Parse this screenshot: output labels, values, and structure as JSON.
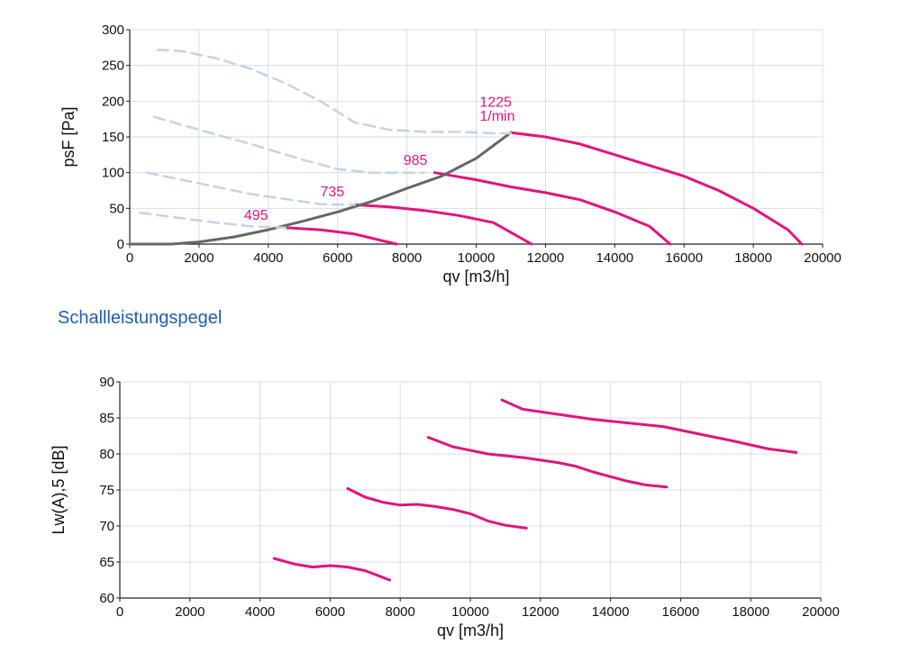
{
  "section_heading": "Schallleistungspegel",
  "colors": {
    "curve": "#e0157d",
    "system_line": "#666666",
    "dashed": "#c5d3e3",
    "grid": "#d7dde6",
    "heading": "#1f5fb0"
  },
  "chart_data": [
    {
      "type": "line",
      "title": "",
      "xlabel": "qv [m3/h]",
      "ylabel": "psF [Pa]",
      "xlim": [
        0,
        20000
      ],
      "ylim": [
        0,
        300
      ],
      "xticks": [
        "0",
        "2000",
        "4000",
        "6000",
        "8000",
        "10000",
        "12000",
        "14000",
        "16000",
        "18000",
        "20000"
      ],
      "yticks": [
        "0",
        "50",
        "100",
        "150",
        "200",
        "250",
        "300"
      ],
      "grid": true,
      "series": [
        {
          "name": "495",
          "style": "solid",
          "points": [
            [
              4500,
              23
            ],
            [
              5500,
              20
            ],
            [
              6500,
              14
            ],
            [
              7700,
              0
            ]
          ]
        },
        {
          "name": "735",
          "style": "solid",
          "points": [
            [
              6500,
              55
            ],
            [
              7500,
              52
            ],
            [
              8500,
              47
            ],
            [
              9500,
              40
            ],
            [
              10500,
              30
            ],
            [
              11600,
              0
            ]
          ]
        },
        {
          "name": "985",
          "style": "solid",
          "points": [
            [
              8800,
              100
            ],
            [
              10000,
              90
            ],
            [
              11000,
              80
            ],
            [
              12000,
              72
            ],
            [
              13000,
              62
            ],
            [
              14000,
              45
            ],
            [
              15000,
              25
            ],
            [
              15600,
              0
            ]
          ]
        },
        {
          "name": "1225",
          "style": "solid",
          "points": [
            [
              11000,
              156
            ],
            [
              12000,
              150
            ],
            [
              13000,
              140
            ],
            [
              14000,
              125
            ],
            [
              15000,
              110
            ],
            [
              16000,
              95
            ],
            [
              17000,
              75
            ],
            [
              18000,
              50
            ],
            [
              19000,
              20
            ],
            [
              19400,
              0
            ]
          ]
        },
        {
          "style": "system",
          "points": [
            [
              0,
              0
            ],
            [
              1200,
              0
            ],
            [
              2000,
              3
            ],
            [
              3000,
              10
            ],
            [
              4000,
              20
            ],
            [
              5000,
              32
            ],
            [
              6000,
              45
            ],
            [
              7000,
              60
            ],
            [
              8000,
              78
            ],
            [
              9000,
              95
            ],
            [
              10000,
              120
            ],
            [
              11000,
              156
            ]
          ]
        },
        {
          "style": "dashed",
          "points": [
            [
              800,
              272
            ],
            [
              1500,
              270
            ],
            [
              2500,
              260
            ],
            [
              3500,
              245
            ],
            [
              4500,
              225
            ],
            [
              5500,
              200
            ],
            [
              6500,
              170
            ],
            [
              7500,
              160
            ],
            [
              8500,
              157
            ],
            [
              9500,
              157
            ],
            [
              10500,
              155
            ],
            [
              11000,
              155
            ]
          ]
        },
        {
          "style": "dashed",
          "points": [
            [
              700,
              178
            ],
            [
              2000,
              160
            ],
            [
              3500,
              140
            ],
            [
              5000,
              118
            ],
            [
              6000,
              105
            ],
            [
              7000,
              100
            ],
            [
              8500,
              100
            ]
          ]
        },
        {
          "style": "dashed",
          "points": [
            [
              500,
              100
            ],
            [
              1500,
              90
            ],
            [
              2500,
              80
            ],
            [
              3500,
              70
            ],
            [
              4500,
              63
            ],
            [
              5500,
              56
            ],
            [
              6500,
              55
            ]
          ]
        },
        {
          "style": "dashed",
          "points": [
            [
              300,
              44
            ],
            [
              1500,
              36
            ],
            [
              2500,
              30
            ],
            [
              3500,
              25
            ],
            [
              4500,
              23
            ]
          ]
        }
      ],
      "annotations": [
        {
          "text": "495",
          "x": 3300,
          "y": 34
        },
        {
          "text": "735",
          "x": 5500,
          "y": 67
        },
        {
          "text": "985",
          "x": 7900,
          "y": 111
        },
        {
          "text": "1225",
          "x": 10100,
          "y": 192
        },
        {
          "text": "1/min",
          "x": 10100,
          "y": 173
        }
      ]
    },
    {
      "type": "line",
      "title": "",
      "xlabel": "qv [m3/h]",
      "ylabel": "Lw(A),5 [dB]",
      "xlim": [
        0,
        20000
      ],
      "ylim": [
        60,
        90
      ],
      "xticks": [
        "0",
        "2000",
        "4000",
        "6000",
        "8000",
        "10000",
        "12000",
        "14000",
        "16000",
        "18000",
        "20000"
      ],
      "yticks": [
        "60",
        "65",
        "70",
        "75",
        "80",
        "85",
        "90"
      ],
      "grid": true,
      "series": [
        {
          "name": "495",
          "style": "solid",
          "points": [
            [
              4400,
              65.5
            ],
            [
              5000,
              64.7
            ],
            [
              5500,
              64.3
            ],
            [
              6000,
              64.5
            ],
            [
              6500,
              64.3
            ],
            [
              7000,
              63.8
            ],
            [
              7700,
              62.5
            ]
          ]
        },
        {
          "name": "735",
          "style": "solid",
          "points": [
            [
              6500,
              75.2
            ],
            [
              7000,
              74
            ],
            [
              7500,
              73.3
            ],
            [
              8000,
              72.9
            ],
            [
              8500,
              73
            ],
            [
              9000,
              72.7
            ],
            [
              9500,
              72.3
            ],
            [
              10000,
              71.7
            ],
            [
              10500,
              70.7
            ],
            [
              11000,
              70.1
            ],
            [
              11600,
              69.7
            ]
          ]
        },
        {
          "name": "985",
          "style": "solid",
          "points": [
            [
              8800,
              82.3
            ],
            [
              9500,
              81
            ],
            [
              10500,
              80
            ],
            [
              11500,
              79.5
            ],
            [
              12500,
              78.8
            ],
            [
              13000,
              78.3
            ],
            [
              13500,
              77.5
            ],
            [
              14500,
              76.2
            ],
            [
              15000,
              75.7
            ],
            [
              15600,
              75.4
            ]
          ]
        },
        {
          "name": "1225",
          "style": "solid",
          "points": [
            [
              10900,
              87.5
            ],
            [
              11500,
              86.2
            ],
            [
              12500,
              85.5
            ],
            [
              13500,
              84.8
            ],
            [
              14500,
              84.3
            ],
            [
              15500,
              83.8
            ],
            [
              16500,
              82.8
            ],
            [
              17500,
              81.8
            ],
            [
              18500,
              80.7
            ],
            [
              19300,
              80.2
            ]
          ]
        }
      ],
      "annotations": []
    }
  ]
}
